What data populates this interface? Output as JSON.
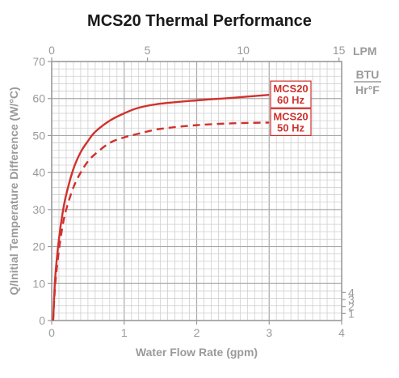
{
  "chart_data": {
    "type": "line",
    "title": "MCS20 Thermal Performance",
    "xlabel": "Water Flow Rate (gpm)",
    "ylabel": "Q/Initial Temperature Difference (W/°C)",
    "x_ticks": [
      0,
      1,
      2,
      3,
      4
    ],
    "xlim": [
      0,
      4
    ],
    "y_ticks": [
      0,
      10,
      20,
      30,
      40,
      50,
      60,
      70
    ],
    "ylim": [
      0,
      70
    ],
    "x2_label": "LPM",
    "x2_ticks": [
      0,
      5,
      10,
      15
    ],
    "y2_label_top": "BTU",
    "y2_label_bottom": "Hr°F",
    "y2_ticks": [
      1,
      2,
      3,
      4
    ],
    "grid": true,
    "series": [
      {
        "name": "MCS20 60 Hz",
        "label_line1": "MCS20",
        "label_line2": "60 Hz",
        "style": "solid",
        "color": "#d0312d",
        "x": [
          0.02,
          0.05,
          0.1,
          0.15,
          0.2,
          0.3,
          0.4,
          0.5,
          0.6,
          0.8,
          1.0,
          1.2,
          1.5,
          2.0,
          2.5,
          3.0
        ],
        "y": [
          0,
          12,
          22,
          29,
          34,
          41,
          45.5,
          48.5,
          51,
          54,
          56,
          57.5,
          58.6,
          59.5,
          60.2,
          61
        ]
      },
      {
        "name": "MCS20 50 Hz",
        "label_line1": "MCS20",
        "label_line2": "50 Hz",
        "style": "dashed",
        "color": "#d0312d",
        "x": [
          0.02,
          0.05,
          0.1,
          0.15,
          0.2,
          0.3,
          0.4,
          0.5,
          0.6,
          0.8,
          1.0,
          1.2,
          1.5,
          2.0,
          2.5,
          3.0
        ],
        "y": [
          0,
          10,
          19,
          25.5,
          30,
          36,
          40,
          43,
          45,
          48,
          49.5,
          50.5,
          51.8,
          52.8,
          53.3,
          53.5
        ]
      }
    ]
  }
}
